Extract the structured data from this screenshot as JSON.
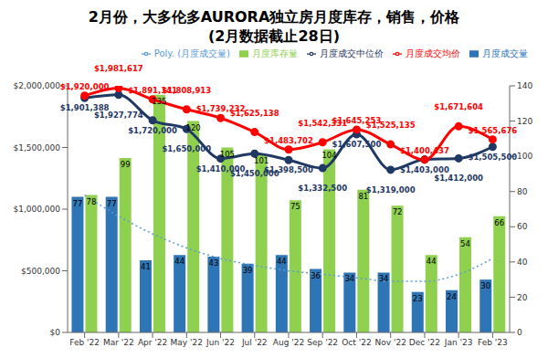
{
  "chart_data": {
    "type": "bar",
    "title": "2月份，大多伦多AURORA独立房月度库存，销售，价格",
    "subtitle": "(2月数据截止28日)",
    "categories": [
      "Feb '22",
      "Mar '22",
      "Apr '22",
      "May '22",
      "Jun '22",
      "Jul '22",
      "Aug '22",
      "Sep '22",
      "Oct '22",
      "Nov '22",
      "Dec '22",
      "Jan '23",
      "Feb '23"
    ],
    "series": [
      {
        "name": "月度成交量",
        "type": "bar",
        "axis": "y2",
        "color": "#2e75b6",
        "data_labels": true,
        "values": [
          77,
          77,
          41,
          44,
          43,
          39,
          44,
          36,
          34,
          34,
          23,
          24,
          30
        ]
      },
      {
        "name": "月度库存量",
        "type": "bar",
        "axis": "y2",
        "color": "#8fd14f",
        "data_labels": true,
        "values": [
          78,
          99,
          135,
          120,
          105,
          101,
          75,
          104,
          81,
          72,
          44,
          54,
          66
        ]
      },
      {
        "name": "月度成交中位价",
        "type": "line",
        "color": "#1f3864",
        "marker": "circle",
        "line_style": "solid",
        "data_labels": true,
        "values": [
          1901388,
          1927774,
          1720000,
          1650000,
          1410000,
          1450000,
          1398500,
          1332500,
          1607500,
          1319000,
          1403000,
          1412000,
          1505500
        ],
        "value_labels": [
          "$1,901,388",
          "$1,927,774",
          "$1,720,000",
          "$1,650,000",
          "$1,410,000",
          "$1,450,000",
          "$1,398,500",
          "$1,332,500",
          "$1,607,500",
          "$1,319,000",
          "$1,403,000",
          "$1,412,000",
          "$1,505,500"
        ]
      },
      {
        "name": "月度成交均价",
        "type": "line",
        "color": "#ff0000",
        "marker": "circle",
        "line_style": "solid",
        "data_labels": true,
        "values": [
          1920000,
          1981617,
          1891141,
          1808913,
          1739232,
          1625138,
          1483702,
          1542331,
          1645253,
          1525135,
          1400437,
          1671604,
          1565676
        ],
        "value_labels": [
          "$1,920,000",
          "$1,981,617",
          "$1,891,141",
          "$1,808,913",
          "$1,739,232",
          "$1,625,138",
          "$1,483,702",
          "$1,542,331",
          "$1,645,253",
          "$1,525,135",
          "$1,400,437",
          "$1,671,604",
          "$1,565,676"
        ]
      },
      {
        "name": "Poly. (月度成交量)",
        "type": "line",
        "axis": "y2",
        "color": "#5b9bd5",
        "marker": "none",
        "line_style": "dotted",
        "values": [
          78,
          66,
          56,
          48,
          42,
          38,
          35,
          33,
          31,
          29,
          29,
          33,
          42
        ]
      }
    ],
    "ylim": [
      0,
      2000000
    ],
    "yticks": [
      {
        "value": 0,
        "label": "$0"
      },
      {
        "value": 500000,
        "label": "$500,000"
      },
      {
        "value": 1000000,
        "label": "$1,000,000"
      },
      {
        "value": 1500000,
        "label": "$1,500,000"
      },
      {
        "value": 2000000,
        "label": "$2,000,000"
      }
    ],
    "y2lim": [
      0,
      140
    ],
    "y2ticks": [
      0,
      20,
      40,
      60,
      80,
      100,
      120,
      140
    ],
    "grid": false,
    "legend": "upper right"
  }
}
